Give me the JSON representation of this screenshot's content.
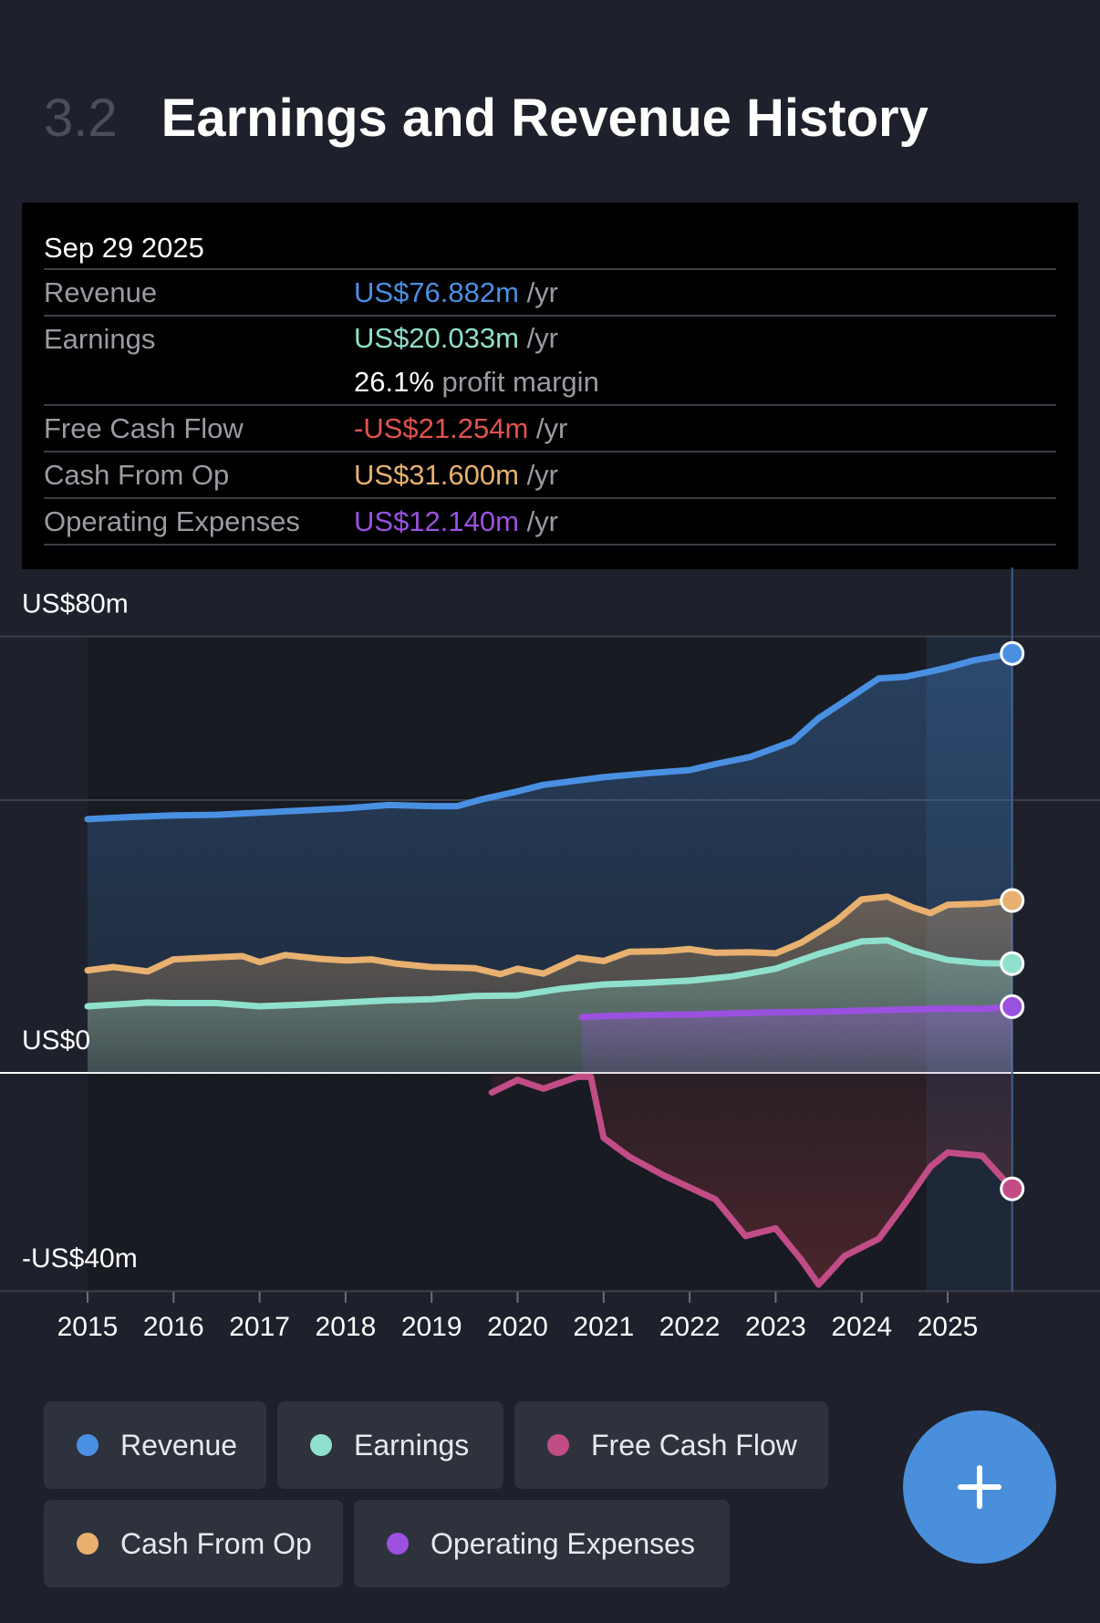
{
  "header": {
    "section_number": "3.2",
    "title": "Earnings and Revenue History"
  },
  "tooltip": {
    "date": "Sep 29 2025",
    "rows": {
      "revenue": {
        "label": "Revenue",
        "value": "US$76.882m",
        "suffix": " /yr",
        "color": "#4a90e2"
      },
      "earnings": {
        "label": "Earnings",
        "value": "US$20.033m",
        "suffix": " /yr",
        "color": "#8fe0cc"
      },
      "profit_margin": {
        "value": "26.1%",
        "suffix": " profit margin"
      },
      "fcf": {
        "label": "Free Cash Flow",
        "value": "-US$21.254m",
        "suffix": " /yr",
        "color": "#e0544e"
      },
      "cfo": {
        "label": "Cash From Op",
        "value": "US$31.600m",
        "suffix": " /yr",
        "color": "#e8b16f"
      },
      "opex": {
        "label": "Operating Expenses",
        "value": "US$12.140m",
        "suffix": " /yr",
        "color": "#9b51e0"
      }
    }
  },
  "legend": {
    "revenue": "Revenue",
    "earnings": "Earnings",
    "fcf": "Free Cash Flow",
    "cfo": "Cash From Op",
    "opex": "Operating Expenses"
  },
  "fab_icon": "plus-icon",
  "chart_data": {
    "type": "area",
    "ylim": [
      -40,
      80
    ],
    "y_tick_labels": [
      {
        "value": 80,
        "label": "US$80m"
      },
      {
        "value": 0,
        "label": "US$0"
      },
      {
        "value": -40,
        "label": "-US$40m"
      }
    ],
    "gridlines": [
      80,
      50,
      0,
      -40
    ],
    "x_tick_labels": [
      {
        "value": 2015,
        "label": "2015"
      },
      {
        "value": 2016,
        "label": "2016"
      },
      {
        "value": 2017,
        "label": "2017"
      },
      {
        "value": 2018,
        "label": "2018"
      },
      {
        "value": 2019,
        "label": "2019"
      },
      {
        "value": 2020,
        "label": "2020"
      },
      {
        "value": 2021,
        "label": "2021"
      },
      {
        "value": 2022,
        "label": "2022"
      },
      {
        "value": 2023,
        "label": "2023"
      },
      {
        "value": 2024,
        "label": "2024"
      },
      {
        "value": 2025,
        "label": "2025"
      }
    ],
    "xlim": [
      2014.0,
      2026.8
    ],
    "highlight_x": 2025.75,
    "forecast_start_x": 2024.75,
    "series": [
      {
        "key": "revenue",
        "name": "Revenue",
        "color": "#4a90e2",
        "fill": true,
        "points": [
          [
            2015.0,
            46.5
          ],
          [
            2015.5,
            46.9
          ],
          [
            2016.0,
            47.2
          ],
          [
            2016.5,
            47.3
          ],
          [
            2017.0,
            47.7
          ],
          [
            2017.5,
            48.1
          ],
          [
            2018.0,
            48.5
          ],
          [
            2018.5,
            49.1
          ],
          [
            2019.0,
            48.9
          ],
          [
            2019.3,
            48.9
          ],
          [
            2019.6,
            50.2
          ],
          [
            2020.0,
            51.6
          ],
          [
            2020.3,
            52.8
          ],
          [
            2020.7,
            53.6
          ],
          [
            2021.0,
            54.2
          ],
          [
            2021.5,
            54.9
          ],
          [
            2022.0,
            55.5
          ],
          [
            2022.3,
            56.6
          ],
          [
            2022.7,
            57.9
          ],
          [
            2023.0,
            59.6
          ],
          [
            2023.2,
            60.8
          ],
          [
            2023.5,
            65.0
          ],
          [
            2024.0,
            70.2
          ],
          [
            2024.2,
            72.3
          ],
          [
            2024.5,
            72.6
          ],
          [
            2024.75,
            73.4
          ],
          [
            2025.0,
            74.3
          ],
          [
            2025.3,
            75.6
          ],
          [
            2025.75,
            76.882
          ]
        ]
      },
      {
        "key": "cfo",
        "name": "Cash From Op",
        "color": "#e8b16f",
        "fill": true,
        "points": [
          [
            2015.0,
            18.8
          ],
          [
            2015.3,
            19.4
          ],
          [
            2015.7,
            18.6
          ],
          [
            2016.0,
            20.8
          ],
          [
            2016.5,
            21.2
          ],
          [
            2016.8,
            21.4
          ],
          [
            2017.0,
            20.3
          ],
          [
            2017.3,
            21.6
          ],
          [
            2017.7,
            20.9
          ],
          [
            2018.0,
            20.6
          ],
          [
            2018.3,
            20.8
          ],
          [
            2018.6,
            20.0
          ],
          [
            2019.0,
            19.4
          ],
          [
            2019.5,
            19.2
          ],
          [
            2019.8,
            18.1
          ],
          [
            2020.0,
            19.1
          ],
          [
            2020.3,
            18.2
          ],
          [
            2020.7,
            21.1
          ],
          [
            2021.0,
            20.5
          ],
          [
            2021.3,
            22.2
          ],
          [
            2021.7,
            22.3
          ],
          [
            2022.0,
            22.7
          ],
          [
            2022.3,
            22.0
          ],
          [
            2022.7,
            22.1
          ],
          [
            2023.0,
            21.9
          ],
          [
            2023.3,
            23.9
          ],
          [
            2023.7,
            27.8
          ],
          [
            2024.0,
            31.8
          ],
          [
            2024.3,
            32.3
          ],
          [
            2024.6,
            30.3
          ],
          [
            2024.8,
            29.3
          ],
          [
            2025.0,
            30.8
          ],
          [
            2025.4,
            31.0
          ],
          [
            2025.75,
            31.6
          ]
        ]
      },
      {
        "key": "earnings",
        "name": "Earnings",
        "color": "#8fe0cc",
        "fill": true,
        "points": [
          [
            2015.0,
            12.2
          ],
          [
            2015.3,
            12.5
          ],
          [
            2015.7,
            12.9
          ],
          [
            2016.0,
            12.8
          ],
          [
            2016.5,
            12.8
          ],
          [
            2017.0,
            12.2
          ],
          [
            2017.5,
            12.5
          ],
          [
            2018.0,
            12.9
          ],
          [
            2018.5,
            13.3
          ],
          [
            2019.0,
            13.5
          ],
          [
            2019.5,
            14.1
          ],
          [
            2020.0,
            14.2
          ],
          [
            2020.5,
            15.4
          ],
          [
            2021.0,
            16.2
          ],
          [
            2021.5,
            16.5
          ],
          [
            2022.0,
            16.9
          ],
          [
            2022.5,
            17.7
          ],
          [
            2023.0,
            19.1
          ],
          [
            2023.5,
            21.8
          ],
          [
            2024.0,
            24.1
          ],
          [
            2024.3,
            24.3
          ],
          [
            2024.6,
            22.4
          ],
          [
            2025.0,
            20.7
          ],
          [
            2025.4,
            20.1
          ],
          [
            2025.75,
            20.033
          ]
        ]
      },
      {
        "key": "opex",
        "name": "Operating Expenses",
        "color": "#9b51e0",
        "fill": true,
        "points": [
          [
            2020.75,
            10.2
          ],
          [
            2021.0,
            10.4
          ],
          [
            2021.5,
            10.6
          ],
          [
            2022.0,
            10.7
          ],
          [
            2022.5,
            10.9
          ],
          [
            2023.0,
            11.1
          ],
          [
            2023.5,
            11.2
          ],
          [
            2024.0,
            11.4
          ],
          [
            2024.5,
            11.6
          ],
          [
            2025.0,
            11.8
          ],
          [
            2025.4,
            11.7
          ],
          [
            2025.75,
            12.14
          ]
        ]
      },
      {
        "key": "fcf",
        "name": "Free Cash Flow",
        "color": "#c24d86",
        "fill": true,
        "fill_color": "#a83a3e",
        "points": [
          [
            2019.7,
            -3.6
          ],
          [
            2020.0,
            -1.3
          ],
          [
            2020.3,
            -2.9
          ],
          [
            2020.7,
            -0.7
          ],
          [
            2020.85,
            -0.7
          ],
          [
            2021.0,
            -11.9
          ],
          [
            2021.3,
            -15.4
          ],
          [
            2021.7,
            -18.8
          ],
          [
            2022.0,
            -21.0
          ],
          [
            2022.3,
            -23.2
          ],
          [
            2022.65,
            -29.9
          ],
          [
            2023.0,
            -28.5
          ],
          [
            2023.3,
            -34.3
          ],
          [
            2023.5,
            -38.8
          ],
          [
            2023.8,
            -33.6
          ],
          [
            2024.2,
            -30.4
          ],
          [
            2024.5,
            -24.0
          ],
          [
            2024.8,
            -17.2
          ],
          [
            2025.0,
            -14.6
          ],
          [
            2025.4,
            -15.2
          ],
          [
            2025.75,
            -21.254
          ]
        ]
      }
    ]
  }
}
